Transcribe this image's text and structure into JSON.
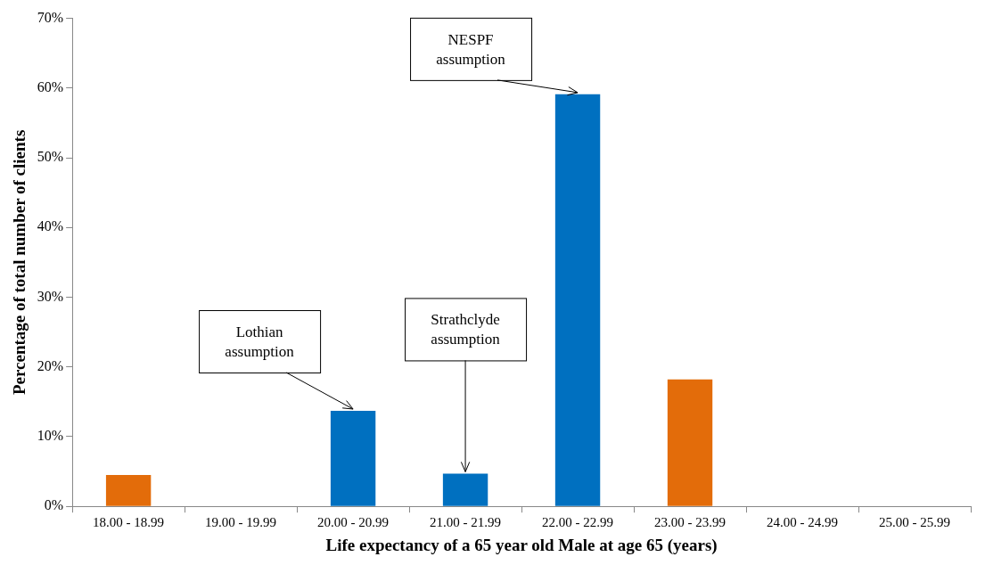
{
  "chart_data": {
    "type": "bar",
    "xlabel": "Life expectancy of a 65 year old Male at age 65 (years)",
    "ylabel": "Percentage of total number of clients",
    "categories": [
      "18.00 - 18.99",
      "19.00 - 19.99",
      "20.00 - 20.99",
      "21.00 - 21.99",
      "22.00 - 22.99",
      "23.00 - 23.99",
      "24.00 - 24.99",
      "25.00 - 25.99"
    ],
    "values": [
      4.5,
      0,
      13.7,
      4.7,
      59.1,
      18.2,
      0,
      0
    ],
    "colors": [
      "#e36c0a",
      "#0070c0",
      "#0070c0",
      "#0070c0",
      "#0070c0",
      "#e36c0a",
      "#0070c0",
      "#0070c0"
    ],
    "ylim": [
      0,
      70
    ],
    "yticks": [
      {
        "value": 0,
        "label": "0%"
      },
      {
        "value": 10,
        "label": "10%"
      },
      {
        "value": 20,
        "label": "20%"
      },
      {
        "value": 30,
        "label": "30%"
      },
      {
        "value": 40,
        "label": "40%"
      },
      {
        "value": 50,
        "label": "50%"
      },
      {
        "value": 60,
        "label": "60%"
      },
      {
        "value": 70,
        "label": "70%"
      }
    ],
    "annotations": [
      {
        "text": "Lothian\nassumption",
        "x": "20.00 - 20.99",
        "y": 13.7
      },
      {
        "text": "Strathclyde\nassumption",
        "x": "21.00 - 21.99",
        "y": 4.7
      },
      {
        "text": "NESPF\nassumption",
        "x": "22.00 - 22.99",
        "y": 59.1
      }
    ],
    "grid": false,
    "legend": false
  }
}
